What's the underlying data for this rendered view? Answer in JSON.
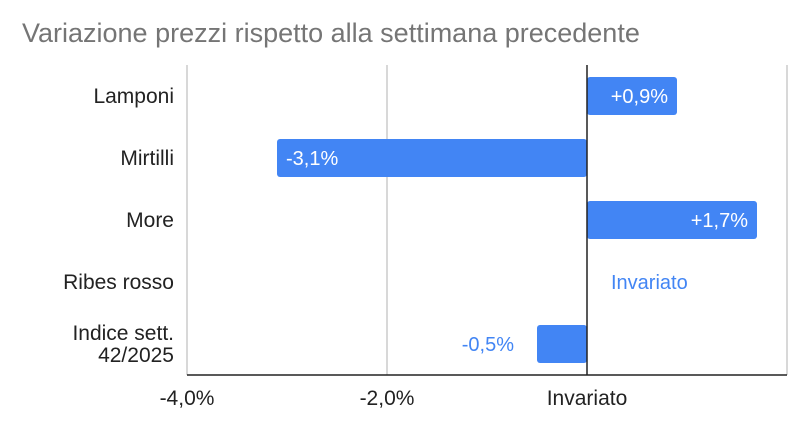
{
  "chart_data": {
    "type": "bar",
    "orientation": "horizontal",
    "title": "Variazione prezzi rispetto alla settimana precedente",
    "categories": [
      "Lamponi",
      "Mirtilli",
      "More",
      "Ribes rosso",
      "Indice sett. 42/2025"
    ],
    "values": [
      0.9,
      -3.1,
      1.7,
      0.0,
      -0.5
    ],
    "data_labels": [
      "+0,9%",
      "-3,1%",
      "+1,7%",
      "Invariato",
      "-0,5%"
    ],
    "xlim": [
      -4.0,
      2.0
    ],
    "x_ticks": [
      {
        "value": -4.0,
        "label": "-4,0%"
      },
      {
        "value": -2.0,
        "label": "-2,0%"
      },
      {
        "value": 0.0,
        "label": "Invariato"
      }
    ],
    "grid": true,
    "legend": "none",
    "colors": {
      "bar": "#4285f4",
      "label_inside": "#ffffff",
      "label_outside": "#4285f4",
      "grid": "#cccccc",
      "axis": "#222222",
      "title": "#757575"
    }
  }
}
